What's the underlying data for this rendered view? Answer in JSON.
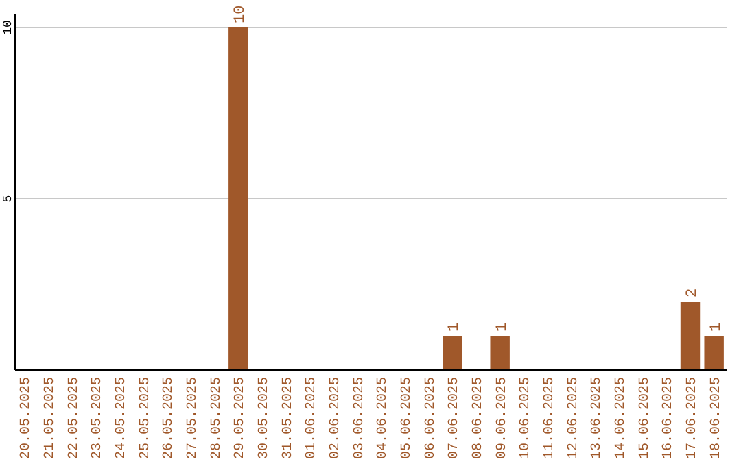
{
  "chart_data": {
    "type": "bar",
    "categories": [
      "20.05.2025",
      "21.05.2025",
      "22.05.2025",
      "23.05.2025",
      "24.05.2025",
      "25.05.2025",
      "26.05.2025",
      "27.05.2025",
      "28.05.2025",
      "29.05.2025",
      "30.05.2025",
      "31.05.2025",
      "01.06.2025",
      "02.06.2025",
      "03.06.2025",
      "04.06.2025",
      "05.06.2025",
      "06.06.2025",
      "07.06.2025",
      "08.06.2025",
      "09.06.2025",
      "10.06.2025",
      "11.06.2025",
      "12.06.2025",
      "13.06.2025",
      "14.06.2025",
      "15.06.2025",
      "16.06.2025",
      "17.06.2025",
      "18.06.2025"
    ],
    "values": [
      0,
      0,
      0,
      0,
      0,
      0,
      0,
      0,
      0,
      10,
      0,
      0,
      0,
      0,
      0,
      0,
      0,
      0,
      1,
      0,
      1,
      0,
      0,
      0,
      0,
      0,
      0,
      0,
      2,
      1
    ],
    "value_labels": [
      null,
      null,
      null,
      null,
      null,
      null,
      null,
      null,
      null,
      "10",
      null,
      null,
      null,
      null,
      null,
      null,
      null,
      null,
      "1",
      null,
      "1",
      null,
      null,
      null,
      null,
      null,
      null,
      null,
      "2",
      "1"
    ],
    "color": "#a0582a",
    "ylim": [
      0,
      10.4
    ],
    "yticks": [
      5,
      10
    ],
    "grid": "y"
  }
}
